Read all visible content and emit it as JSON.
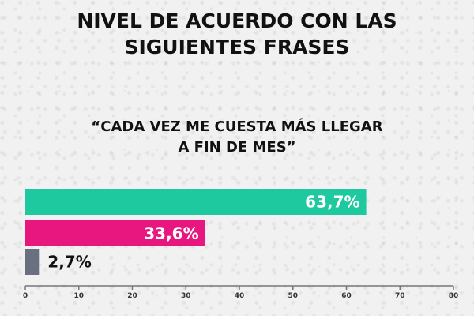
{
  "header": {
    "title_line1": "NIVEL DE ACUERDO CON LAS",
    "title_line2": "SIGUIENTES FRASES",
    "subtitle_line1": "“CADA VEZ ME CUESTA MÁS LLEGAR",
    "subtitle_line2": "A FIN DE MES”"
  },
  "chart_data": {
    "type": "bar",
    "orientation": "horizontal",
    "values": [
      63.7,
      33.6,
      2.7
    ],
    "value_labels": [
      "63,7%",
      "33,6%",
      "2,7%"
    ],
    "colors": [
      "#1ec9a0",
      "#e8177f",
      "#6b7080"
    ],
    "xlim": [
      0,
      80
    ],
    "xticks": [
      "0",
      "10",
      "20",
      "30",
      "40",
      "50",
      "60",
      "70",
      "80"
    ],
    "grid": false,
    "legend": "none"
  }
}
